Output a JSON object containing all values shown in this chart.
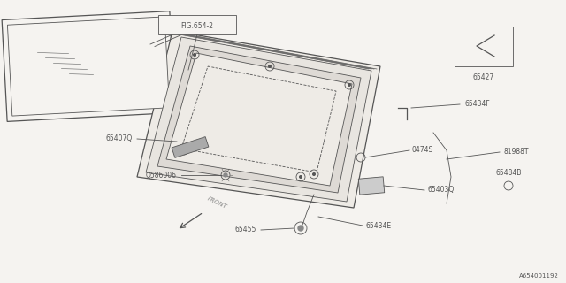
{
  "bg_color": "#f5f3f0",
  "line_color": "#555555",
  "watermark": "A654001192",
  "fig_label": "FIG.654-2",
  "label_65427": "65427",
  "label_65407Q": "65407Q",
  "label_Q586006": "Q586006",
  "label_0474S": "0474S",
  "label_65403Q": "65403Q",
  "label_65434F": "65434F",
  "label_81988T": "81988T",
  "label_65484B": "65484B",
  "label_65434E": "65434E",
  "label_65455": "65455",
  "label_FRONT": "FRONT"
}
